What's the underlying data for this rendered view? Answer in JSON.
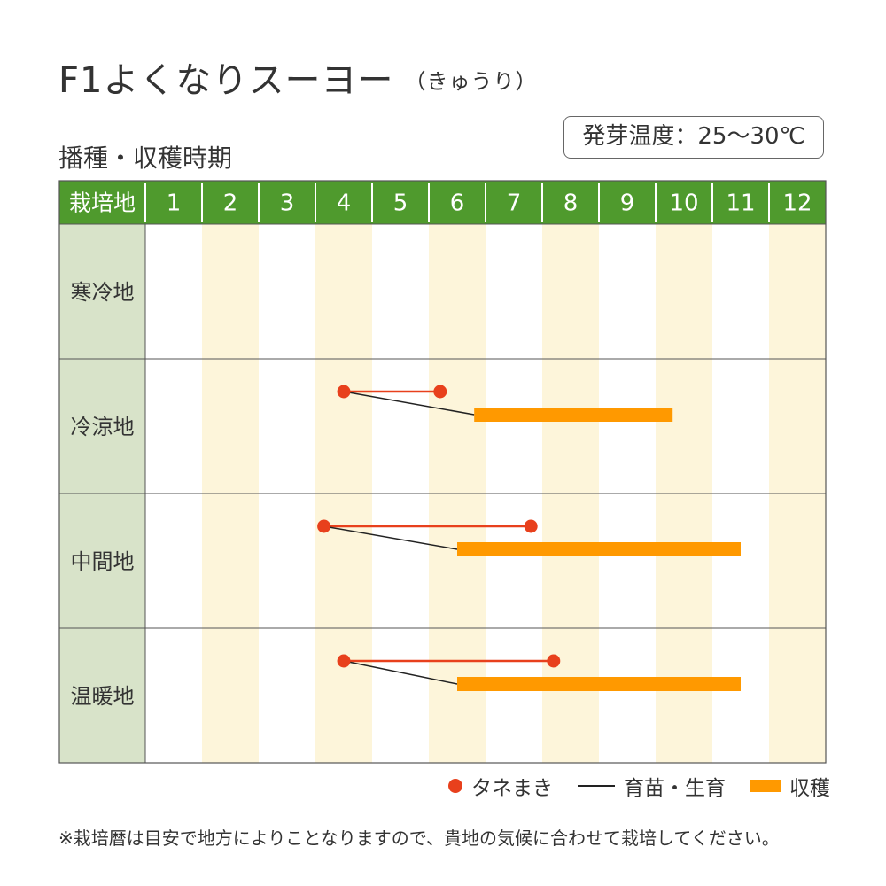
{
  "title": "F1よくなりスーヨー",
  "title_sub": "（きゅうり）",
  "subtitle": "播種・収穫時期",
  "germination_temp": "発芽温度：25〜30℃",
  "chart_data": {
    "type": "gantt",
    "header_label": "栽培地",
    "months": [
      "1",
      "2",
      "3",
      "4",
      "5",
      "6",
      "7",
      "8",
      "9",
      "10",
      "11",
      "12"
    ],
    "regions": [
      {
        "name": "寒冷地",
        "sowing": null,
        "harvest": null
      },
      {
        "name": "冷涼地",
        "sowing": [
          4.5,
          6.2
        ],
        "harvest": [
          6.8,
          10.3
        ]
      },
      {
        "name": "中間地",
        "sowing": [
          4.15,
          7.8
        ],
        "harvest": [
          6.5,
          11.5
        ]
      },
      {
        "name": "温暖地",
        "sowing": [
          4.5,
          8.2
        ],
        "harvest": [
          6.5,
          11.5
        ]
      }
    ],
    "colors": {
      "header": "#4f9a2d",
      "region_col": "#d8e3c9",
      "stripe": "#fdf5da",
      "sowing": "#e8401c",
      "growing": "#222222",
      "harvest": "#ff9900"
    }
  },
  "legend": {
    "sowing": "タネまき",
    "growing": "育苗・生育",
    "harvest": "収穫"
  },
  "note": "※栽培暦は目安で地方によりことなりますので、貴地の気候に合わせて栽培してください。"
}
